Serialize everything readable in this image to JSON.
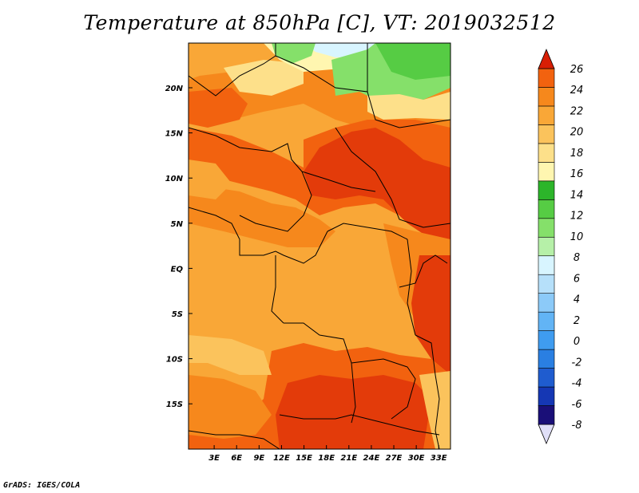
{
  "title": "Temperature at 850hPa [C], VT: 2019032512",
  "credit": "GrADS: IGES/COLA",
  "map": {
    "lat_labels": [
      {
        "lat": 20,
        "text": "20N"
      },
      {
        "lat": 15,
        "text": "15N"
      },
      {
        "lat": 10,
        "text": "10N"
      },
      {
        "lat": 5,
        "text": "5N"
      },
      {
        "lat": 0,
        "text": "EQ"
      },
      {
        "lat": -5,
        "text": "5S"
      },
      {
        "lat": -10,
        "text": "10S"
      },
      {
        "lat": -15,
        "text": "15S"
      }
    ],
    "lon_labels": [
      {
        "lon": 3,
        "text": "3E"
      },
      {
        "lon": 6,
        "text": "6E"
      },
      {
        "lon": 9,
        "text": "9E"
      },
      {
        "lon": 12,
        "text": "12E"
      },
      {
        "lon": 15,
        "text": "15E"
      },
      {
        "lon": 18,
        "text": "18E"
      },
      {
        "lon": 21,
        "text": "21E"
      },
      {
        "lon": 24,
        "text": "24E"
      },
      {
        "lon": 27,
        "text": "27E"
      },
      {
        "lon": 30,
        "text": "30E"
      },
      {
        "lon": 33,
        "text": "33E"
      }
    ]
  },
  "colorbar": {
    "colors": [
      "#1a0f78",
      "#1537b4",
      "#1f5ccf",
      "#2a7fe2",
      "#3f9cf0",
      "#62b4f5",
      "#8ccaf8",
      "#b6e0fa",
      "#d8f5ff",
      "#b6f0a8",
      "#85e06a",
      "#56cc44",
      "#2cb52a",
      "#fff6b0",
      "#fde08a",
      "#fbc35c",
      "#f9a737",
      "#f6881c",
      "#f2620f",
      "#e33b0a",
      "#d81e05"
    ],
    "labels": [
      "26",
      "24",
      "22",
      "20",
      "18",
      "16",
      "14",
      "12",
      "10",
      "8",
      "6",
      "4",
      "2",
      "0",
      "-2",
      "-4",
      "-6",
      "-8"
    ]
  }
}
